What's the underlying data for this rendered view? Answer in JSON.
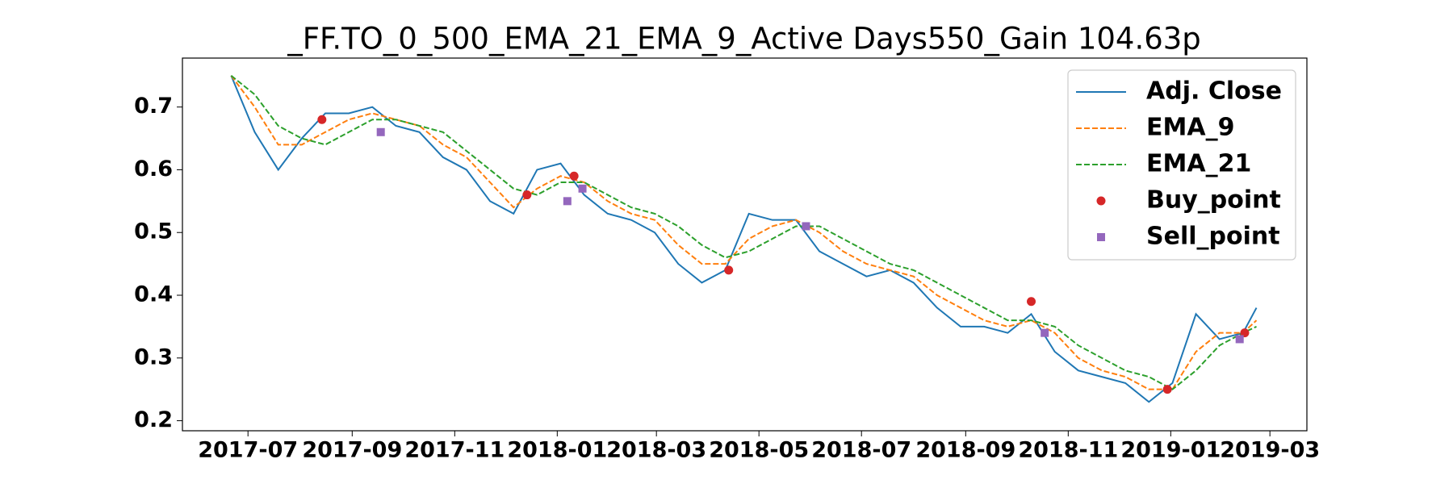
{
  "chart_data": {
    "type": "line",
    "title": "_FF.TO_0_500_EMA_21_EMA_9_Active Days550_Gain 104.63p",
    "x": [
      "2017-06-21",
      "2017-07-05",
      "2017-07-19",
      "2017-08-02",
      "2017-08-16",
      "2017-08-30",
      "2017-09-13",
      "2017-09-27",
      "2017-10-11",
      "2017-10-25",
      "2017-11-08",
      "2017-11-22",
      "2017-12-06",
      "2017-12-20",
      "2018-01-03",
      "2018-01-17",
      "2018-01-31",
      "2018-02-14",
      "2018-02-28",
      "2018-03-14",
      "2018-03-28",
      "2018-04-11",
      "2018-04-25",
      "2018-05-09",
      "2018-05-23",
      "2018-06-06",
      "2018-06-20",
      "2018-07-04",
      "2018-07-18",
      "2018-08-01",
      "2018-08-15",
      "2018-08-29",
      "2018-09-12",
      "2018-09-26",
      "2018-10-10",
      "2018-10-24",
      "2018-11-07",
      "2018-11-21",
      "2018-12-05",
      "2018-12-19",
      "2019-01-02",
      "2019-01-16",
      "2019-01-30",
      "2019-02-13",
      "2019-02-21"
    ],
    "series": [
      {
        "name": "Adj. Close",
        "color": "#1f77b4",
        "style": "solid",
        "values": [
          0.75,
          0.66,
          0.6,
          0.65,
          0.69,
          0.69,
          0.7,
          0.67,
          0.66,
          0.62,
          0.6,
          0.55,
          0.53,
          0.6,
          0.61,
          0.56,
          0.53,
          0.52,
          0.5,
          0.45,
          0.42,
          0.44,
          0.53,
          0.52,
          0.52,
          0.47,
          0.45,
          0.43,
          0.44,
          0.42,
          0.38,
          0.35,
          0.35,
          0.34,
          0.37,
          0.31,
          0.28,
          0.27,
          0.26,
          0.23,
          0.26,
          0.37,
          0.33,
          0.34,
          0.38
        ]
      },
      {
        "name": "EMA_9",
        "color": "#ff7f0e",
        "style": "dashed",
        "values": [
          0.75,
          0.7,
          0.64,
          0.64,
          0.66,
          0.68,
          0.69,
          0.68,
          0.67,
          0.64,
          0.62,
          0.58,
          0.54,
          0.57,
          0.59,
          0.58,
          0.55,
          0.53,
          0.52,
          0.48,
          0.45,
          0.45,
          0.49,
          0.51,
          0.52,
          0.5,
          0.47,
          0.45,
          0.44,
          0.43,
          0.4,
          0.38,
          0.36,
          0.35,
          0.36,
          0.34,
          0.3,
          0.28,
          0.27,
          0.25,
          0.25,
          0.31,
          0.34,
          0.34,
          0.36
        ]
      },
      {
        "name": "EMA_21",
        "color": "#2ca02c",
        "style": "dashed",
        "values": [
          0.75,
          0.72,
          0.67,
          0.65,
          0.64,
          0.66,
          0.68,
          0.68,
          0.67,
          0.66,
          0.63,
          0.6,
          0.57,
          0.56,
          0.58,
          0.58,
          0.56,
          0.54,
          0.53,
          0.51,
          0.48,
          0.46,
          0.47,
          0.49,
          0.51,
          0.51,
          0.49,
          0.47,
          0.45,
          0.44,
          0.42,
          0.4,
          0.38,
          0.36,
          0.36,
          0.35,
          0.32,
          0.3,
          0.28,
          0.27,
          0.25,
          0.28,
          0.32,
          0.34,
          0.35
        ]
      },
      {
        "name": "Buy_point",
        "color": "#d62728",
        "style": "circle",
        "x": [
          "2017-08-14",
          "2017-12-14",
          "2018-01-11",
          "2018-04-13",
          "2018-10-10",
          "2018-12-30",
          "2019-02-14"
        ],
        "values": [
          0.68,
          0.56,
          0.59,
          0.44,
          0.39,
          0.25,
          0.34
        ]
      },
      {
        "name": "Sell_point",
        "color": "#9467bd",
        "style": "square",
        "x": [
          "2017-09-18",
          "2018-01-07",
          "2018-01-16",
          "2018-05-29",
          "2018-10-18",
          "2019-02-11"
        ],
        "values": [
          0.66,
          0.55,
          0.57,
          0.51,
          0.34,
          0.33
        ]
      }
    ],
    "xlim": [
      "2017-05-23",
      "2019-03-23"
    ],
    "xticks": [
      {
        "value": "2017-07-01",
        "label": "2017-07"
      },
      {
        "value": "2017-09-01",
        "label": "2017-09"
      },
      {
        "value": "2017-11-01",
        "label": "2017-11"
      },
      {
        "value": "2018-01-01",
        "label": "2018-01"
      },
      {
        "value": "2018-03-01",
        "label": "2018-03"
      },
      {
        "value": "2018-05-01",
        "label": "2018-05"
      },
      {
        "value": "2018-07-01",
        "label": "2018-07"
      },
      {
        "value": "2018-09-01",
        "label": "2018-09"
      },
      {
        "value": "2018-11-01",
        "label": "2018-11"
      },
      {
        "value": "2019-01-01",
        "label": "2019-01"
      },
      {
        "value": "2019-03-01",
        "label": "2019-03"
      }
    ],
    "ylim": [
      0.184,
      0.778
    ],
    "yticks": [
      0.2,
      0.3,
      0.4,
      0.5,
      0.6,
      0.7
    ],
    "legend": "upper right"
  }
}
